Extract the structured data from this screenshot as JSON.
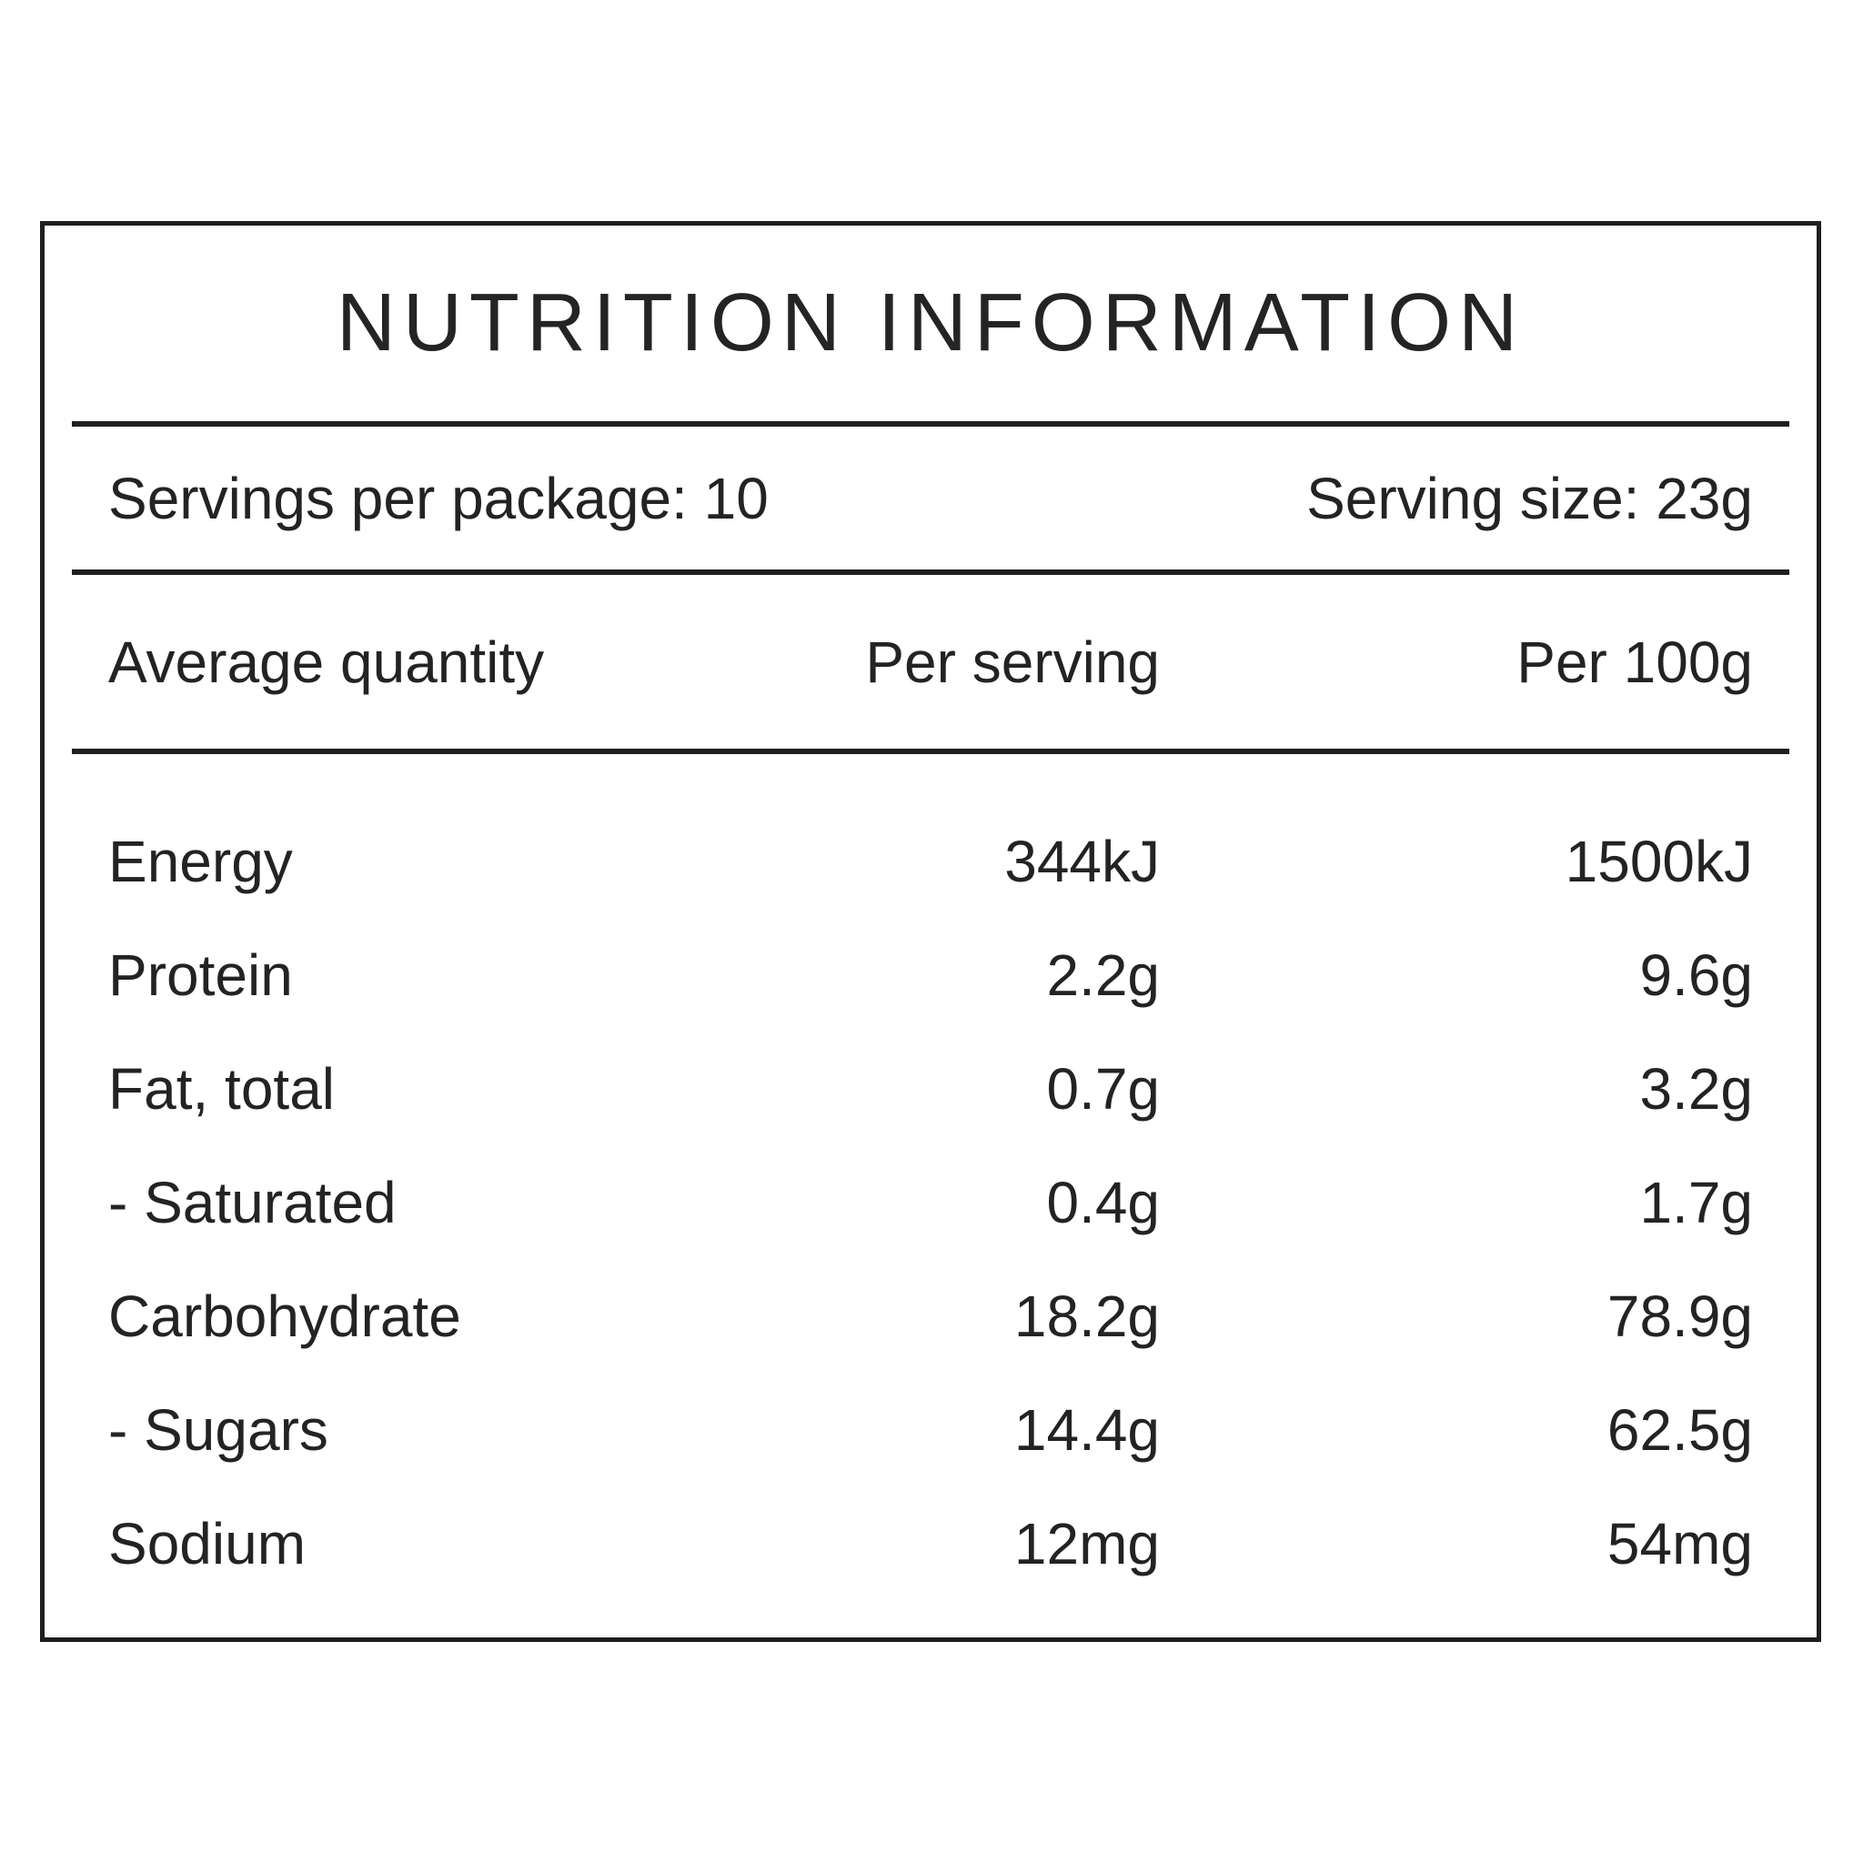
{
  "panel": {
    "title": "NUTRITION INFORMATION",
    "servings": {
      "per_package": "Servings per package: 10",
      "serving_size": "Serving size: 23g"
    },
    "columns": {
      "label": "Average quantity",
      "per_serving": "Per serving",
      "per_100g": "Per 100g"
    },
    "rows": [
      {
        "label": "Energy",
        "per_serving": "344kJ",
        "per_100g": "1500kJ"
      },
      {
        "label": "Protein",
        "per_serving": "2.2g",
        "per_100g": "9.6g"
      },
      {
        "label": "Fat, total",
        "per_serving": "0.7g",
        "per_100g": "3.2g"
      },
      {
        "label": "- Saturated",
        "per_serving": "0.4g",
        "per_100g": "1.7g"
      },
      {
        "label": "Carbohydrate",
        "per_serving": "18.2g",
        "per_100g": "78.9g"
      },
      {
        "label": "- Sugars",
        "per_serving": "14.4g",
        "per_100g": "62.5g"
      },
      {
        "label": "Sodium",
        "per_serving": "12mg",
        "per_100g": "54mg"
      }
    ],
    "colors": {
      "text": "#232323",
      "border": "#1f1f1f",
      "background": "#ffffff"
    }
  }
}
